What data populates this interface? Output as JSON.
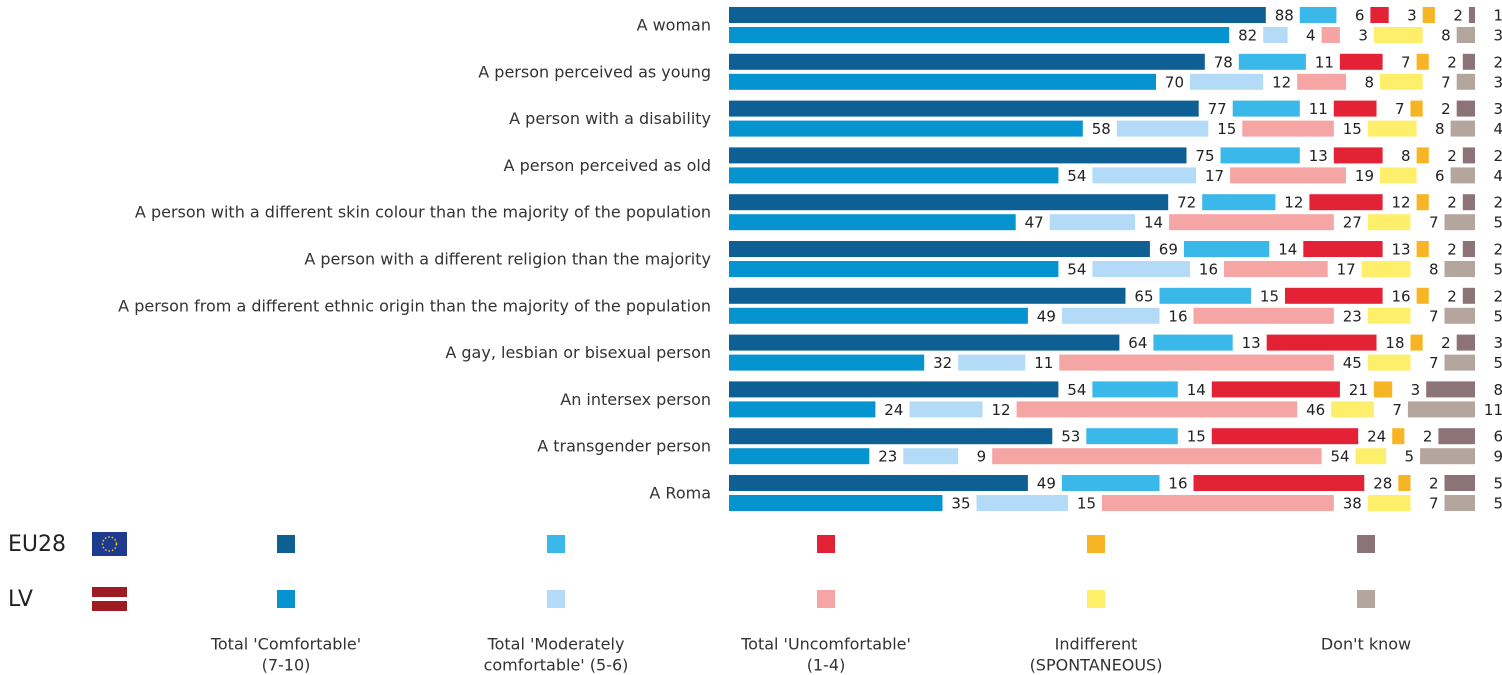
{
  "chart_data": {
    "type": "bar",
    "categories": [
      "A woman",
      "A person perceived as young",
      "A person with a disability",
      "A person perceived as old",
      "A person with a different skin colour than the majority of the population",
      "A person with a different religion than the majority",
      "A person from a different ethnic origin than the majority of the population",
      "A gay, lesbian or bisexual person",
      "An intersex person",
      "A transgender person",
      "A Roma"
    ],
    "segment_names": [
      [
        "Total 'Comfortable'",
        "(7-10)"
      ],
      [
        "Total 'Moderately",
        "comfortable' (5-6)"
      ],
      [
        "Total 'Uncomfortable'",
        "(1-4)"
      ],
      [
        "Indifferent",
        "(SPONTANEOUS)"
      ],
      [
        "Don't know"
      ]
    ],
    "groups": [
      {
        "name": "EU28",
        "colors": [
          "#0e5f94",
          "#3bb8ea",
          "#e32236",
          "#f7b526",
          "#8b7377"
        ],
        "values": [
          [
            88,
            6,
            3,
            2,
            1
          ],
          [
            78,
            11,
            7,
            2,
            2
          ],
          [
            77,
            11,
            7,
            2,
            3
          ],
          [
            75,
            13,
            8,
            2,
            2
          ],
          [
            72,
            12,
            12,
            2,
            2
          ],
          [
            69,
            14,
            13,
            2,
            2
          ],
          [
            65,
            15,
            16,
            2,
            2
          ],
          [
            64,
            13,
            18,
            2,
            3
          ],
          [
            54,
            14,
            21,
            3,
            8
          ],
          [
            53,
            15,
            24,
            2,
            6
          ],
          [
            49,
            16,
            28,
            2,
            5
          ]
        ]
      },
      {
        "name": "LV",
        "colors": [
          "#0694d0",
          "#b3dbf7",
          "#f5a5a3",
          "#feef6b",
          "#b5a69d"
        ],
        "values": [
          [
            82,
            4,
            3,
            8,
            3
          ],
          [
            70,
            12,
            8,
            7,
            3
          ],
          [
            58,
            15,
            15,
            8,
            4
          ],
          [
            54,
            17,
            19,
            6,
            4
          ],
          [
            47,
            14,
            27,
            7,
            5
          ],
          [
            54,
            16,
            17,
            8,
            5
          ],
          [
            49,
            16,
            23,
            7,
            5
          ],
          [
            32,
            11,
            45,
            7,
            5
          ],
          [
            24,
            12,
            46,
            7,
            11
          ],
          [
            23,
            9,
            54,
            5,
            9
          ],
          [
            35,
            15,
            38,
            7,
            5
          ]
        ]
      }
    ]
  }
}
